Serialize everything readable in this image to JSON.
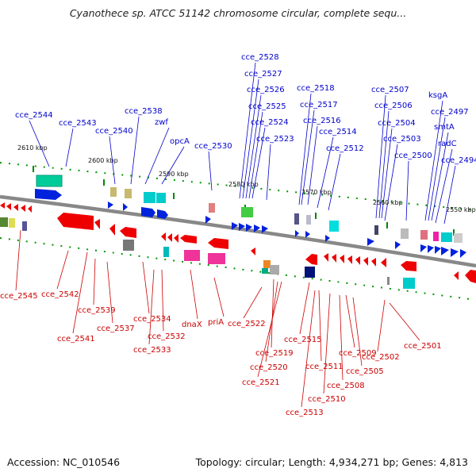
{
  "title": "Cyanothece sp. ATCC 51142 chromosome circular, complete sequ...",
  "footer": {
    "accession": "Accession: NC_010546",
    "topology": "Topology: circular; Length: 4,934,271 bp; Genes: 4,813"
  },
  "colors": {
    "upper_label": "#0000cc",
    "lower_label": "#cc0000",
    "backbone": "#8a8a8a",
    "tick": "#008800"
  },
  "kbp_ticks": [
    "2610 kbp",
    "2600 kbp",
    "2590 kbp",
    "2580 kbp",
    "2570 kbp",
    "2560 kbp",
    "2550 kbp"
  ],
  "upper_labels": [
    "cce_2544",
    "cce_2543",
    "cce_2540",
    "cce_2538",
    "zwf",
    "opcA",
    "cce_2530",
    "cce_2528",
    "cce_2527",
    "cce_2526",
    "cce_2525",
    "cce_2524",
    "cce_2523",
    "cce_2518",
    "cce_2517",
    "cce_2516",
    "cce_2514",
    "cce_2512",
    "cce_2507",
    "cce_2506",
    "cce_2504",
    "cce_2503",
    "cce_2500",
    "ksgA",
    "cce_2497",
    "smtA",
    "radC",
    "cce_2494"
  ],
  "lower_labels": [
    "cce_2545",
    "cce_2542",
    "cce_2541",
    "cce_2539",
    "cce_2537",
    "cce_2534",
    "cce_2533",
    "cce_2532",
    "dnaX",
    "priA",
    "cce_2522",
    "cce_2519",
    "cce_2520",
    "cce_2521",
    "cce_2515",
    "cce_2511",
    "cce_2513",
    "cce_2510",
    "cce_2509",
    "cce_2508",
    "cce_2505",
    "cce_2502",
    "cce_2501"
  ]
}
